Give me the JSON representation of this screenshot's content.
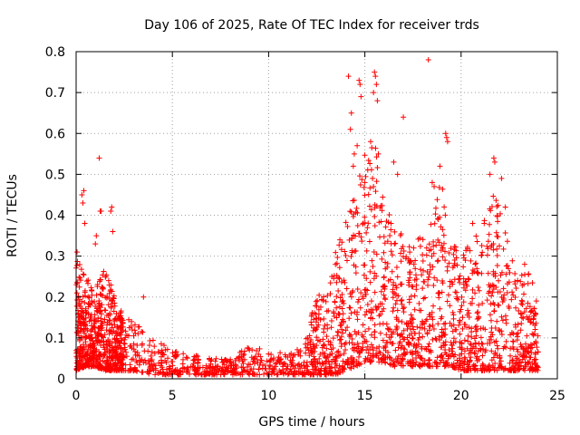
{
  "chart_data": {
    "type": "scatter",
    "title": "Day 106 of 2025, Rate Of TEC Index for receiver trds",
    "xlabel": "GPS time / hours",
    "ylabel": "ROTI / TECUs",
    "xlim": [
      0,
      25
    ],
    "ylim": [
      0,
      0.8
    ],
    "x_ticks": [
      0,
      5,
      10,
      15,
      20,
      25
    ],
    "y_ticks": [
      0,
      0.1,
      0.2,
      0.3,
      0.4,
      0.5,
      0.6,
      0.7,
      0.8
    ],
    "x_tick_labels": [
      "0",
      "5",
      "10",
      "15",
      "20",
      "25"
    ],
    "y_tick_labels": [
      "0",
      "0.1",
      "0.2",
      "0.3",
      "0.4",
      "0.5",
      "0.6",
      "0.7",
      "0.8"
    ],
    "grid": true,
    "marker": "+",
    "series_color": "#ff0000",
    "envelope": {
      "x": [
        0,
        0.5,
        1,
        1.5,
        2,
        2.5,
        3,
        4,
        5,
        6,
        7,
        8,
        9,
        10,
        11,
        12,
        12.5,
        13,
        13.5,
        14,
        14.5,
        15,
        15.5,
        16,
        16.5,
        17,
        17.5,
        18,
        18.5,
        19,
        19.5,
        20,
        20.5,
        21,
        21.5,
        22,
        22.5,
        23,
        23.5,
        24
      ],
      "y_low": [
        0.02,
        0.03,
        0.03,
        0.02,
        0.02,
        0.02,
        0.02,
        0.01,
        0.01,
        0.01,
        0.01,
        0.01,
        0.01,
        0.01,
        0.01,
        0.01,
        0.01,
        0.01,
        0.01,
        0.02,
        0.03,
        0.04,
        0.04,
        0.04,
        0.03,
        0.03,
        0.03,
        0.03,
        0.03,
        0.03,
        0.03,
        0.02,
        0.02,
        0.02,
        0.02,
        0.02,
        0.02,
        0.02,
        0.02,
        0.02
      ],
      "y_high": [
        0.3,
        0.25,
        0.22,
        0.28,
        0.2,
        0.15,
        0.14,
        0.1,
        0.07,
        0.06,
        0.05,
        0.05,
        0.08,
        0.07,
        0.06,
        0.12,
        0.2,
        0.22,
        0.32,
        0.38,
        0.48,
        0.55,
        0.6,
        0.45,
        0.38,
        0.35,
        0.32,
        0.36,
        0.45,
        0.48,
        0.34,
        0.3,
        0.34,
        0.36,
        0.44,
        0.46,
        0.32,
        0.28,
        0.26,
        0.2
      ]
    },
    "density": [
      {
        "x": [
          0,
          2.5
        ],
        "n": 650
      },
      {
        "x": [
          2.5,
          12
        ],
        "n": 520
      },
      {
        "x": [
          12,
          24
        ],
        "n": 1500
      }
    ],
    "outliers": [
      {
        "x": 0.05,
        "y": 0.31
      },
      {
        "x": 0.3,
        "y": 0.45
      },
      {
        "x": 0.35,
        "y": 0.43
      },
      {
        "x": 0.4,
        "y": 0.46
      },
      {
        "x": 0.45,
        "y": 0.38
      },
      {
        "x": 1.0,
        "y": 0.33
      },
      {
        "x": 1.05,
        "y": 0.35
      },
      {
        "x": 1.2,
        "y": 0.54
      },
      {
        "x": 1.25,
        "y": 0.41
      },
      {
        "x": 1.3,
        "y": 0.41
      },
      {
        "x": 1.8,
        "y": 0.41
      },
      {
        "x": 1.85,
        "y": 0.42
      },
      {
        "x": 1.9,
        "y": 0.36
      },
      {
        "x": 3.5,
        "y": 0.2
      },
      {
        "x": 14.15,
        "y": 0.74
      },
      {
        "x": 14.4,
        "y": 0.52
      },
      {
        "x": 14.45,
        "y": 0.55
      },
      {
        "x": 14.6,
        "y": 0.57
      },
      {
        "x": 14.7,
        "y": 0.73
      },
      {
        "x": 14.75,
        "y": 0.72
      },
      {
        "x": 14.8,
        "y": 0.69
      },
      {
        "x": 14.3,
        "y": 0.65
      },
      {
        "x": 14.25,
        "y": 0.61
      },
      {
        "x": 15.0,
        "y": 0.48
      },
      {
        "x": 15.3,
        "y": 0.58
      },
      {
        "x": 15.45,
        "y": 0.7
      },
      {
        "x": 15.5,
        "y": 0.75
      },
      {
        "x": 15.55,
        "y": 0.74
      },
      {
        "x": 15.6,
        "y": 0.72
      },
      {
        "x": 15.65,
        "y": 0.68
      },
      {
        "x": 15.7,
        "y": 0.55
      },
      {
        "x": 15.4,
        "y": 0.49
      },
      {
        "x": 16.5,
        "y": 0.53
      },
      {
        "x": 16.7,
        "y": 0.5
      },
      {
        "x": 17.0,
        "y": 0.64
      },
      {
        "x": 18.3,
        "y": 0.78
      },
      {
        "x": 18.5,
        "y": 0.48
      },
      {
        "x": 18.6,
        "y": 0.47
      },
      {
        "x": 18.9,
        "y": 0.52
      },
      {
        "x": 19.2,
        "y": 0.6
      },
      {
        "x": 19.25,
        "y": 0.59
      },
      {
        "x": 19.3,
        "y": 0.58
      },
      {
        "x": 21.5,
        "y": 0.5
      },
      {
        "x": 21.7,
        "y": 0.54
      },
      {
        "x": 21.75,
        "y": 0.53
      },
      {
        "x": 22.1,
        "y": 0.49
      },
      {
        "x": 22.3,
        "y": 0.42
      },
      {
        "x": 21.2,
        "y": 0.38
      },
      {
        "x": 20.6,
        "y": 0.38
      },
      {
        "x": 23.3,
        "y": 0.28
      }
    ]
  }
}
